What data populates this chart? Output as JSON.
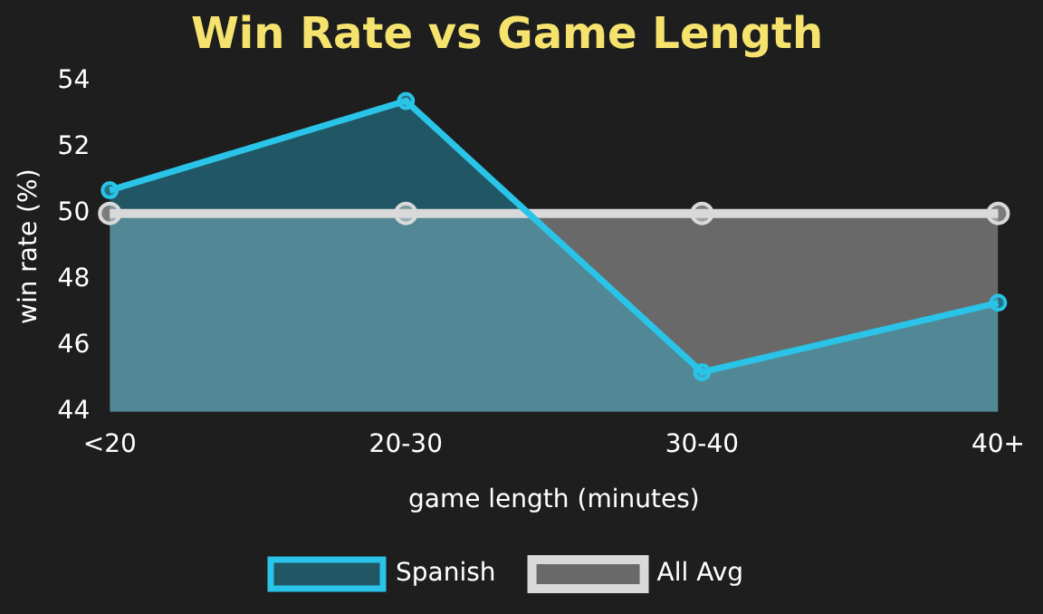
{
  "chart_data": {
    "type": "area",
    "title": "Win Rate vs Game Length",
    "xlabel": "game length (minutes)",
    "ylabel": "win rate (%)",
    "categories": [
      "<20",
      "20-30",
      "30-40",
      "40+"
    ],
    "series": [
      {
        "name": "Spanish",
        "color": "#29c4e8",
        "values": [
          50.7,
          53.4,
          45.2,
          47.3
        ]
      },
      {
        "name": "All Avg",
        "color": "#d9d9d9",
        "values": [
          50,
          50,
          50,
          50
        ]
      }
    ],
    "ylim": [
      44,
      54
    ],
    "yticks": [
      44,
      46,
      48,
      50,
      52,
      54
    ],
    "grid": false,
    "legend": "bottom",
    "marker": "circle"
  }
}
